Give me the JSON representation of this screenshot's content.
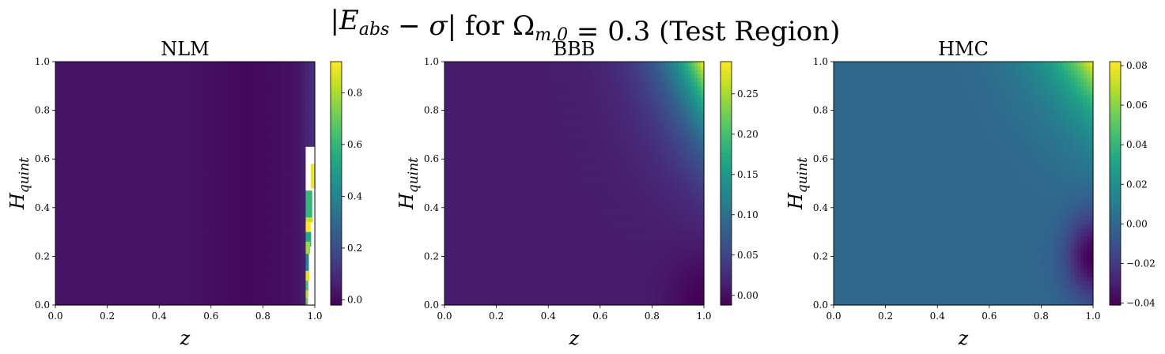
{
  "figure": {
    "title": "|E_abs − σ| for Ω_m,0 = 0.3 (Test Region)"
  },
  "chart_data": [
    {
      "type": "heatmap",
      "title": "NLM",
      "xlabel": "z",
      "ylabel": "H_quint",
      "xlim": [
        0.0,
        1.0
      ],
      "ylim": [
        0.0,
        1.0
      ],
      "xticks": [
        "0.0",
        "0.2",
        "0.4",
        "0.6",
        "0.8",
        "1.0"
      ],
      "yticks": [
        "0.0",
        "0.2",
        "0.4",
        "0.6",
        "0.8",
        "1.0"
      ],
      "colormap": "viridis",
      "colorbar_range": [
        -0.02,
        0.92
      ],
      "colorbar_ticks": [
        "0.0",
        "0.2",
        "0.4",
        "0.6",
        "0.8"
      ],
      "colorbar_tick_values": [
        0.0,
        0.2,
        0.4,
        0.6,
        0.8
      ],
      "description_values": {
        "background_level": 0.03,
        "min_near_z": 0.75,
        "edge_spike_max": 0.92,
        "edge_z_start": 0.93
      }
    },
    {
      "type": "heatmap",
      "title": "BBB",
      "xlabel": "z",
      "ylabel": "H_quint",
      "xlim": [
        0.0,
        1.0
      ],
      "ylim": [
        0.0,
        1.0
      ],
      "xticks": [
        "0.0",
        "0.2",
        "0.4",
        "0.6",
        "0.8",
        "1.0"
      ],
      "yticks": [
        "0.0",
        "0.2",
        "0.4",
        "0.6",
        "0.8",
        "1.0"
      ],
      "colormap": "viridis",
      "colorbar_range": [
        -0.012,
        0.29
      ],
      "colorbar_ticks": [
        "0.00",
        "0.05",
        "0.10",
        "0.15",
        "0.20",
        "0.25"
      ],
      "colorbar_tick_values": [
        0.0,
        0.05,
        0.1,
        0.15,
        0.2,
        0.25
      ],
      "description_values": {
        "background_level": 0.012,
        "max_corner": 0.29,
        "min_corner": -0.012
      }
    },
    {
      "type": "heatmap",
      "title": "HMC",
      "xlabel": "z",
      "ylabel": "H_quint",
      "xlim": [
        0.0,
        1.0
      ],
      "ylim": [
        0.0,
        1.0
      ],
      "xticks": [
        "0.0",
        "0.2",
        "0.4",
        "0.6",
        "0.8",
        "1.0"
      ],
      "yticks": [
        "0.0",
        "0.2",
        "0.4",
        "0.6",
        "0.8",
        "1.0"
      ],
      "colormap": "viridis",
      "colorbar_range": [
        -0.041,
        0.082
      ],
      "colorbar_ticks": [
        "−0.04",
        "−0.02",
        "0.00",
        "0.02",
        "0.04",
        "0.06",
        "0.08"
      ],
      "colorbar_tick_values": [
        -0.04,
        -0.02,
        0.0,
        0.02,
        0.04,
        0.06,
        0.08
      ],
      "description_values": {
        "background_level": 0.0,
        "max_corner": 0.082,
        "min_at": [
          1.0,
          0.2
        ],
        "min_value": -0.041
      }
    }
  ]
}
